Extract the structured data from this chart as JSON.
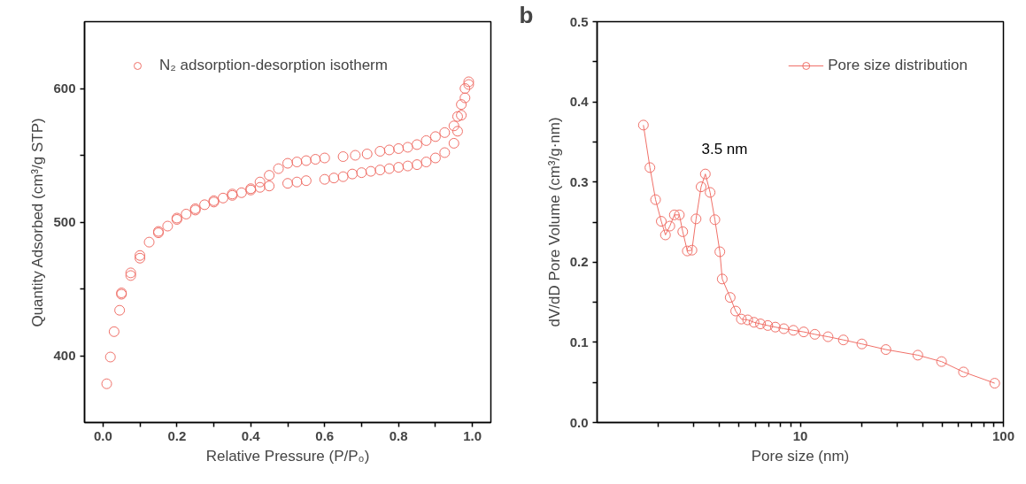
{
  "chart_data": [
    {
      "type": "scatter",
      "xlabel": "Relative Pressure (P/P₀)",
      "ylabel": "Quantity Adsorbed (cm³/g STP)",
      "xlim": [
        -0.05,
        1.05
      ],
      "xticks": [
        {
          "value": 0,
          "label": "0.0"
        },
        0.2,
        0.4,
        0.6,
        0.8,
        {
          "value": 1,
          "label": "1.0"
        },
        {
          "value": 0.1,
          "label": null
        },
        {
          "value": 0.3,
          "label": null
        },
        {
          "value": 0.5,
          "label": null
        },
        {
          "value": 0.7,
          "label": null
        },
        {
          "value": 0.9,
          "label": null
        }
      ],
      "ylim": [
        350,
        650
      ],
      "yticks": [
        400,
        500,
        600,
        {
          "value": 450,
          "label": null
        },
        {
          "value": 550,
          "label": null
        }
      ],
      "legend": "top left",
      "marker": "circle",
      "grid": false,
      "series": [
        {
          "name": "N₂ adsorption-desorption isotherm",
          "color": "#f07068",
          "x": [
            0.01,
            0.02,
            0.03,
            0.045,
            0.05,
            0.075,
            0.1,
            0.125,
            0.15,
            0.175,
            0.2,
            0.225,
            0.25,
            0.275,
            0.3,
            0.325,
            0.35,
            0.375,
            0.4,
            0.425,
            0.45,
            0.5,
            0.525,
            0.55,
            0.6,
            0.625,
            0.65,
            0.675,
            0.7,
            0.725,
            0.75,
            0.775,
            0.8,
            0.825,
            0.85,
            0.875,
            0.9,
            0.925,
            0.95,
            0.96,
            0.97,
            0.98,
            0.99,
            0.99,
            0.98,
            0.97,
            0.96,
            0.95,
            0.925,
            0.9,
            0.875,
            0.85,
            0.825,
            0.8,
            0.775,
            0.75,
            0.715,
            0.683,
            0.65,
            0.6,
            0.575,
            0.55,
            0.525,
            0.5,
            0.475,
            0.45,
            0.425,
            0.4,
            0.35,
            0.3,
            0.25,
            0.2,
            0.15,
            0.1,
            0.075,
            0.05
          ],
          "values": [
            379,
            399,
            418,
            434,
            446,
            460,
            473,
            485,
            492,
            497,
            502,
            506,
            509,
            513,
            515,
            518,
            520,
            522,
            524,
            526,
            527,
            529,
            530,
            531,
            532,
            533,
            534,
            536,
            537,
            538,
            539,
            540,
            541,
            542,
            543,
            545,
            548,
            552,
            559,
            568,
            580,
            593,
            605,
            603,
            600,
            588,
            579,
            572,
            567,
            564,
            561,
            558,
            556,
            555,
            554,
            553,
            551,
            550,
            549,
            548,
            547,
            546,
            545,
            544,
            540,
            535,
            530,
            525,
            521,
            516,
            510,
            503,
            493,
            475,
            462,
            447
          ]
        }
      ]
    },
    {
      "type": "line",
      "xlabel": "Pore size (nm)",
      "ylabel": "dV/dD Pore Volume (cm³/g·nm)",
      "log": "x",
      "xlim": [
        1,
        100
      ],
      "xticks": [
        10,
        100,
        {
          "value": 2,
          "label": null
        },
        {
          "value": 3,
          "label": null
        },
        {
          "value": 4,
          "label": null
        },
        {
          "value": 5,
          "label": null
        },
        {
          "value": 6,
          "label": null
        },
        {
          "value": 7,
          "label": null
        },
        {
          "value": 8,
          "label": null
        },
        {
          "value": 9,
          "label": null
        },
        {
          "value": 20,
          "label": null
        },
        {
          "value": 30,
          "label": null
        },
        {
          "value": 40,
          "label": null
        },
        {
          "value": 50,
          "label": null
        },
        {
          "value": 60,
          "label": null
        },
        {
          "value": 70,
          "label": null
        },
        {
          "value": 80,
          "label": null
        },
        {
          "value": 90,
          "label": null
        }
      ],
      "ylim": [
        0,
        0.5
      ],
      "yticks": [
        {
          "value": 0,
          "label": "0.0"
        },
        0.1,
        0.2,
        0.3,
        0.4,
        0.5,
        {
          "value": 0.05,
          "label": null
        },
        {
          "value": 0.15,
          "label": null
        },
        {
          "value": 0.25,
          "label": null
        },
        {
          "value": 0.35,
          "label": null
        },
        {
          "value": 0.45,
          "label": null
        }
      ],
      "legend": "top right",
      "marker": "circle",
      "line_style": "solid",
      "grid": false,
      "annotations": [
        "b",
        "3.5 nm"
      ],
      "series": [
        {
          "name": "Pore size distribution",
          "color": "#f07068",
          "x": [
            1.69,
            1.82,
            1.94,
            2.07,
            2.17,
            2.28,
            2.4,
            2.54,
            2.64,
            2.78,
            2.93,
            3.07,
            3.25,
            3.41,
            3.6,
            3.8,
            4.02,
            4.13,
            4.52,
            4.81,
            5.13,
            5.51,
            5.92,
            6.37,
            6.92,
            7.54,
            8.3,
            9.25,
            10.4,
            11.8,
            13.7,
            16.3,
            20.1,
            26.4,
            37.9,
            49.6,
            63.6,
            90.6
          ],
          "values": [
            0.371,
            0.318,
            0.278,
            0.251,
            0.234,
            0.245,
            0.259,
            0.259,
            0.238,
            0.214,
            0.215,
            0.254,
            0.294,
            0.31,
            0.287,
            0.253,
            0.213,
            0.179,
            0.156,
            0.139,
            0.129,
            0.128,
            0.125,
            0.123,
            0.121,
            0.119,
            0.117,
            0.115,
            0.113,
            0.11,
            0.107,
            0.103,
            0.098,
            0.091,
            0.084,
            0.076,
            0.063,
            0.049
          ]
        }
      ]
    }
  ]
}
